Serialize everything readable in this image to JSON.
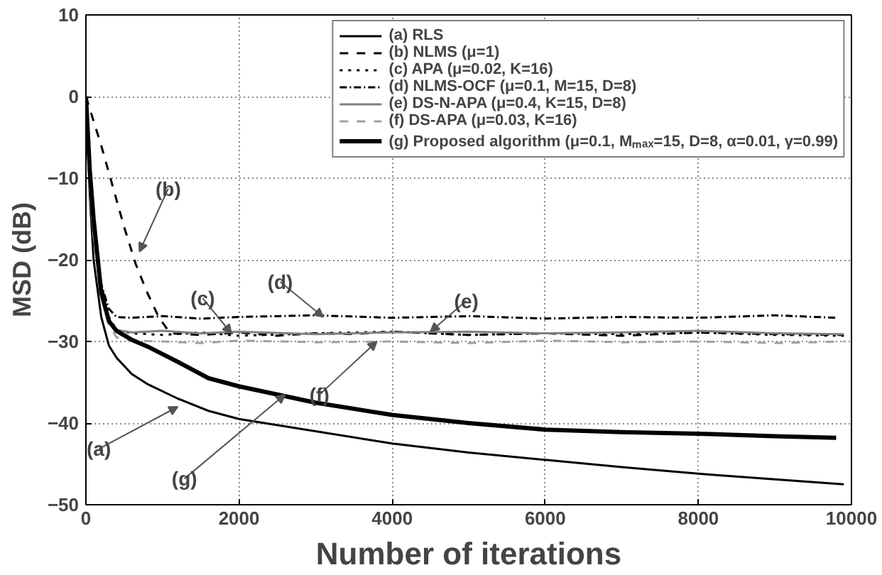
{
  "chart_data": {
    "type": "line",
    "xlabel": "Number of iterations",
    "ylabel": "MSD (dB)",
    "xlim": [
      0,
      10000
    ],
    "ylim": [
      -50,
      10
    ],
    "xticks": [
      0,
      2000,
      4000,
      6000,
      8000,
      10000
    ],
    "yticks": [
      -50,
      -40,
      -30,
      -20,
      -10,
      0,
      10
    ],
    "grid": true,
    "legend": "top right",
    "series": [
      {
        "name": "(a) RLS",
        "color": "#000000",
        "line_style": "solid",
        "x": [
          0,
          50,
          100,
          200,
          300,
          400,
          600,
          800,
          1200,
          1600,
          2000,
          3000,
          4000,
          5000,
          6000,
          7000,
          8000,
          9000,
          9900
        ],
        "values": [
          0,
          -12,
          -20,
          -27,
          -30.5,
          -32,
          -34,
          -35.2,
          -37,
          -38.5,
          -39.5,
          -41,
          -42.5,
          -43.6,
          -44.5,
          -45.4,
          -46.2,
          -46.9,
          -47.5
        ]
      },
      {
        "name": "(b) NLMS (μ=1)",
        "color": "#000000",
        "line_style": "dashed",
        "x": [
          0,
          200,
          350,
          500,
          650,
          800,
          950,
          1100,
          1500,
          2000,
          2500,
          3000,
          3500,
          4000,
          5000,
          6000,
          7000,
          8000,
          9000,
          9900
        ],
        "values": [
          0,
          -6,
          -11,
          -16,
          -20.5,
          -24,
          -27,
          -29,
          -29.2,
          -28.9,
          -29.3,
          -29,
          -29.1,
          -28.8,
          -29.2,
          -29,
          -29.3,
          -28.9,
          -29.1,
          -29.2
        ]
      },
      {
        "name": "(c) APA (μ=0.02, K=16)",
        "color": "#000000",
        "line_style": "dotted",
        "x": [
          0,
          50,
          100,
          200,
          300,
          400,
          600,
          1000,
          1500,
          2000,
          3000,
          4000,
          5000,
          6000,
          7000,
          8000,
          9000,
          9900
        ],
        "values": [
          0,
          -10,
          -16,
          -23,
          -27,
          -28.6,
          -29,
          -29.2,
          -28.9,
          -29.3,
          -29,
          -28.8,
          -29.2,
          -29,
          -29.1,
          -28.9,
          -29.2,
          -29.3
        ]
      },
      {
        "name": "(d) NLMS-OCF (μ=0.1, M=15, D=8)",
        "color": "#000000",
        "line_style": "dashdot",
        "x": [
          0,
          50,
          100,
          200,
          300,
          400,
          600,
          1000,
          1500,
          2000,
          3000,
          4000,
          5000,
          6000,
          7000,
          8000,
          9000,
          9800
        ],
        "values": [
          0,
          -10,
          -16,
          -23,
          -26,
          -27,
          -27.1,
          -26.9,
          -27.2,
          -27,
          -26.8,
          -27.1,
          -26.9,
          -27.2,
          -27,
          -27.1,
          -26.8,
          -27.1
        ]
      },
      {
        "name": "(e) DS-N-APA (μ=0.4, K=15, D=8)",
        "color": "#808080",
        "line_style": "solid",
        "x": [
          0,
          50,
          100,
          200,
          300,
          400,
          600,
          1000,
          1500,
          2000,
          3000,
          4000,
          5000,
          6000,
          7000,
          8000,
          9000,
          9900
        ],
        "values": [
          0,
          -11,
          -17,
          -24,
          -27.5,
          -28.6,
          -28.9,
          -28.7,
          -29,
          -28.8,
          -29.1,
          -28.9,
          -28.8,
          -29,
          -28.9,
          -28.7,
          -29,
          -29.1
        ]
      },
      {
        "name": "(f) DS-APA (μ=0.03, K=16)",
        "color": "#a0a0a0",
        "line_style": "dashed",
        "x": [
          0,
          50,
          100,
          200,
          300,
          400,
          600,
          1000,
          1500,
          2000,
          3000,
          4000,
          5000,
          6000,
          7000,
          8000,
          9000,
          9900
        ],
        "values": [
          0,
          -11,
          -17,
          -24.5,
          -28,
          -29.5,
          -29.9,
          -30,
          -30.2,
          -29.9,
          -30.1,
          -30,
          -30.2,
          -29.9,
          -30.1,
          -30,
          -30.2,
          -30
        ]
      },
      {
        "name": "(g) Proposed algorithm (μ=0.1, Mₘₐₓ=15, D=8, α=0.01, γ=0.99)",
        "color": "#000000",
        "line_style": "solid",
        "x": [
          0,
          50,
          100,
          200,
          300,
          400,
          600,
          800,
          1200,
          1600,
          2000,
          3000,
          4000,
          5000,
          6000,
          7000,
          8000,
          9000,
          9800
        ],
        "values": [
          0,
          -9,
          -15,
          -24,
          -27.5,
          -28.7,
          -29.8,
          -30.6,
          -32.5,
          -34.5,
          -35.5,
          -37.5,
          -39,
          -40,
          -40.8,
          -41.1,
          -41.3,
          -41.6,
          -41.8
        ]
      }
    ],
    "annotations": [
      {
        "text": "(b)",
        "x": 700,
        "y": -19
      },
      {
        "text": "(c)",
        "x": 1900,
        "y": -29
      },
      {
        "text": "(d)",
        "x": 3100,
        "y": -27
      },
      {
        "text": "(e)",
        "x": 4500,
        "y": -28.8
      },
      {
        "text": "(f)",
        "x": 3800,
        "y": -30
      },
      {
        "text": "(a)",
        "x": 1200,
        "y": -38
      },
      {
        "text": "(g)",
        "x": 2600,
        "y": -36.5
      }
    ]
  }
}
